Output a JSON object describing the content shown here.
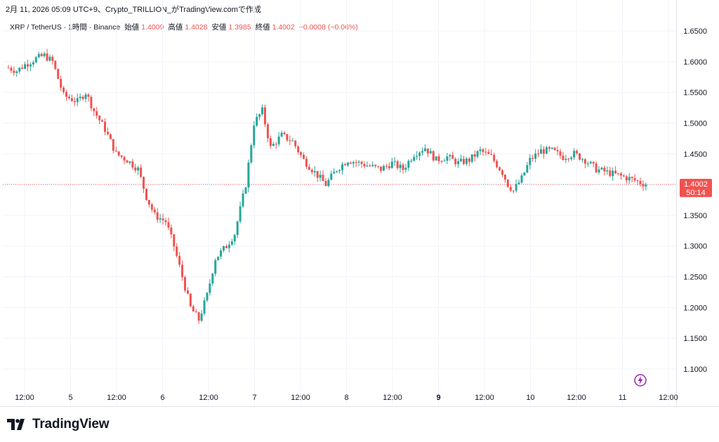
{
  "caption": "2月 11, 2026 05:09 UTC+9、Crypto_TRILLION_がTradingView.comで作成",
  "legend": {
    "symbol": "XRP / TetherUS · 1時間 · Binance",
    "open_label": "始値",
    "open": "1.4009",
    "high_label": "高値",
    "high": "1.4028",
    "low_label": "安値",
    "low": "1.3985",
    "close_label": "終値",
    "close": "1.4002",
    "change": "−0.0008 (−0.06%)"
  },
  "price_tag": {
    "price": "1.4002",
    "countdown": "50:14",
    "color": "#ef5350"
  },
  "brand": {
    "name": "TradingView"
  },
  "colors": {
    "up": "#26a69a",
    "down": "#ef5350",
    "grid": "#f0f3fa",
    "axis_text": "#131722"
  },
  "chart_data": {
    "type": "candlestick",
    "ylim": [
      1.07,
      1.67
    ],
    "y_ticks": [
      "1.1000",
      "1.1500",
      "1.2000",
      "1.2500",
      "1.3000",
      "1.3500",
      "1.4000",
      "1.4500",
      "1.5000",
      "1.5500",
      "1.6000",
      "1.6500"
    ],
    "x_ticks": [
      {
        "label": "12:00",
        "bold": false
      },
      {
        "label": "5",
        "bold": false
      },
      {
        "label": "12:00",
        "bold": false
      },
      {
        "label": "6",
        "bold": false
      },
      {
        "label": "12:00",
        "bold": false
      },
      {
        "label": "7",
        "bold": false
      },
      {
        "label": "12:00",
        "bold": false
      },
      {
        "label": "8",
        "bold": false
      },
      {
        "label": "12:00",
        "bold": false
      },
      {
        "label": "9",
        "bold": true
      },
      {
        "label": "12:00",
        "bold": false
      },
      {
        "label": "10",
        "bold": false
      },
      {
        "label": "12:00",
        "bold": false
      },
      {
        "label": "11",
        "bold": false
      },
      {
        "label": "12:00",
        "bold": false
      }
    ],
    "last_price": 1.4002,
    "anchors": [
      [
        0,
        1.59
      ],
      [
        3,
        1.585
      ],
      [
        6,
        1.595
      ],
      [
        10,
        1.605
      ],
      [
        13,
        1.61
      ],
      [
        16,
        1.6
      ],
      [
        20,
        1.545
      ],
      [
        25,
        1.535
      ],
      [
        28,
        1.55
      ],
      [
        31,
        1.52
      ],
      [
        35,
        1.49
      ],
      [
        39,
        1.45
      ],
      [
        43,
        1.44
      ],
      [
        47,
        1.425
      ],
      [
        50,
        1.38
      ],
      [
        53,
        1.35
      ],
      [
        57,
        1.34
      ],
      [
        60,
        1.3
      ],
      [
        63,
        1.25
      ],
      [
        66,
        1.2
      ],
      [
        69,
        1.18
      ],
      [
        72,
        1.22
      ],
      [
        75,
        1.28
      ],
      [
        79,
        1.3
      ],
      [
        82,
        1.32
      ],
      [
        86,
        1.4
      ],
      [
        89,
        1.5
      ],
      [
        92,
        1.52
      ],
      [
        95,
        1.46
      ],
      [
        99,
        1.48
      ],
      [
        103,
        1.47
      ],
      [
        107,
        1.44
      ],
      [
        111,
        1.42
      ],
      [
        115,
        1.4
      ],
      [
        119,
        1.425
      ],
      [
        123,
        1.44
      ],
      [
        127,
        1.435
      ],
      [
        131,
        1.43
      ],
      [
        135,
        1.425
      ],
      [
        139,
        1.435
      ],
      [
        143,
        1.425
      ],
      [
        147,
        1.45
      ],
      [
        151,
        1.46
      ],
      [
        155,
        1.44
      ],
      [
        159,
        1.445
      ],
      [
        163,
        1.435
      ],
      [
        167,
        1.44
      ],
      [
        171,
        1.455
      ],
      [
        175,
        1.445
      ],
      [
        179,
        1.42
      ],
      [
        181,
        1.4
      ],
      [
        183,
        1.39
      ],
      [
        186,
        1.41
      ],
      [
        189,
        1.44
      ],
      [
        193,
        1.455
      ],
      [
        197,
        1.455
      ],
      [
        201,
        1.445
      ],
      [
        205,
        1.45
      ],
      [
        209,
        1.44
      ],
      [
        213,
        1.425
      ],
      [
        217,
        1.42
      ],
      [
        221,
        1.415
      ],
      [
        225,
        1.41
      ],
      [
        228,
        1.405
      ],
      [
        231,
        1.4002
      ]
    ]
  }
}
